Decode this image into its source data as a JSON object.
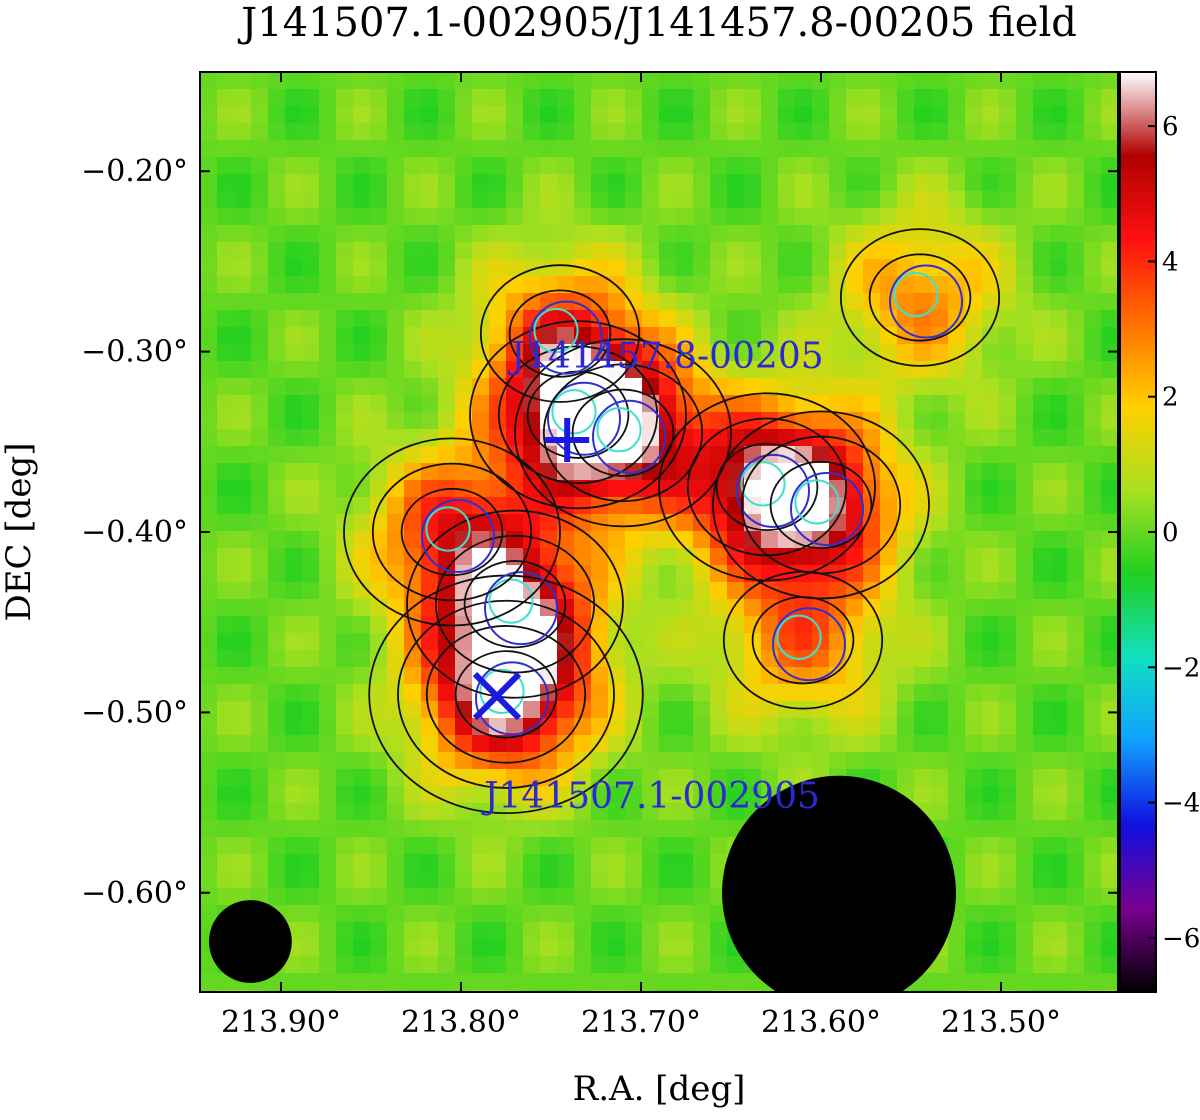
{
  "chart_data": {
    "type": "heatmap",
    "title": "J141507.1-002905/J141457.8-00205 field",
    "xlabel": "R.A. [deg]",
    "ylabel": "DEC [deg]",
    "xlim": [
      213.945,
      213.435
    ],
    "ylim": [
      -0.655,
      -0.145
    ],
    "x_ticks": [
      213.9,
      213.8,
      213.7,
      213.6,
      213.5
    ],
    "x_tick_labels": [
      "213.90°",
      "213.80°",
      "213.70°",
      "213.60°",
      "213.50°"
    ],
    "y_ticks": [
      -0.2,
      -0.3,
      -0.4,
      -0.5,
      -0.6
    ],
    "y_tick_labels": [
      "−0.20°",
      "−0.30°",
      "−0.40°",
      "−0.50°",
      "−0.60°"
    ],
    "colorbar": {
      "range": [
        -6.8,
        6.8
      ],
      "ticks": [
        6,
        4,
        2,
        0,
        -2,
        -4,
        -6
      ],
      "tick_labels": [
        "6",
        "4",
        "2",
        "0",
        "−2",
        "−4",
        "−6"
      ],
      "colors": [
        "#000000",
        "#7a0090",
        "#1010e0",
        "#10a0ff",
        "#10e0c0",
        "#20d020",
        "#a8e020",
        "#ffd000",
        "#ff7000",
        "#ff1010",
        "#b00000",
        "#ffffff"
      ]
    },
    "sources": [
      {
        "name": "J141457.8-00205",
        "ra": 213.741,
        "dec": -0.349,
        "marker": "plus"
      },
      {
        "name": "J141507.1-002905",
        "ra": 213.78,
        "dec": -0.491,
        "marker": "x"
      }
    ],
    "significance_peaks": [
      {
        "ra": 213.775,
        "dec": -0.49,
        "value": 6.5
      },
      {
        "ra": 213.735,
        "dec": -0.335,
        "value": 5.0
      },
      {
        "ra": 213.63,
        "dec": -0.375,
        "value": 5.2
      },
      {
        "ra": 213.77,
        "dec": -0.44,
        "value": 4.8
      },
      {
        "ra": 213.71,
        "dec": -0.345,
        "value": 4.5
      },
      {
        "ra": 213.805,
        "dec": -0.4,
        "value": 3.8
      },
      {
        "ra": 213.6,
        "dec": -0.385,
        "value": 4.0
      },
      {
        "ra": 213.545,
        "dec": -0.27,
        "value": 2.8
      },
      {
        "ra": 213.745,
        "dec": -0.29,
        "value": 3.0
      },
      {
        "ra": 213.61,
        "dec": -0.46,
        "value": 3.0
      }
    ],
    "masked_regions": [
      {
        "ra": 213.59,
        "dec": -0.6,
        "radius_deg": 0.065
      },
      {
        "ra": 213.917,
        "dec": -0.627,
        "radius_deg": 0.023
      }
    ]
  }
}
